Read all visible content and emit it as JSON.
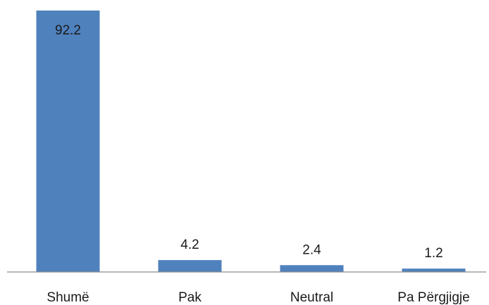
{
  "chart_data": {
    "type": "bar",
    "categories": [
      "Shumë",
      "Pak",
      "Neutral",
      "Pa Përgjigje"
    ],
    "values": [
      92.2,
      4.2,
      2.4,
      1.2
    ],
    "data_labels": [
      "92.2",
      "4.2",
      "2.4",
      "1.2"
    ],
    "title": "",
    "xlabel": "",
    "ylabel": "",
    "ylim": [
      0,
      92.2
    ],
    "grid": false,
    "legend": "none",
    "colors": {
      "bar": "#4f81bd",
      "axis": "#8c8c8c",
      "text": "#1a1a1a"
    }
  }
}
